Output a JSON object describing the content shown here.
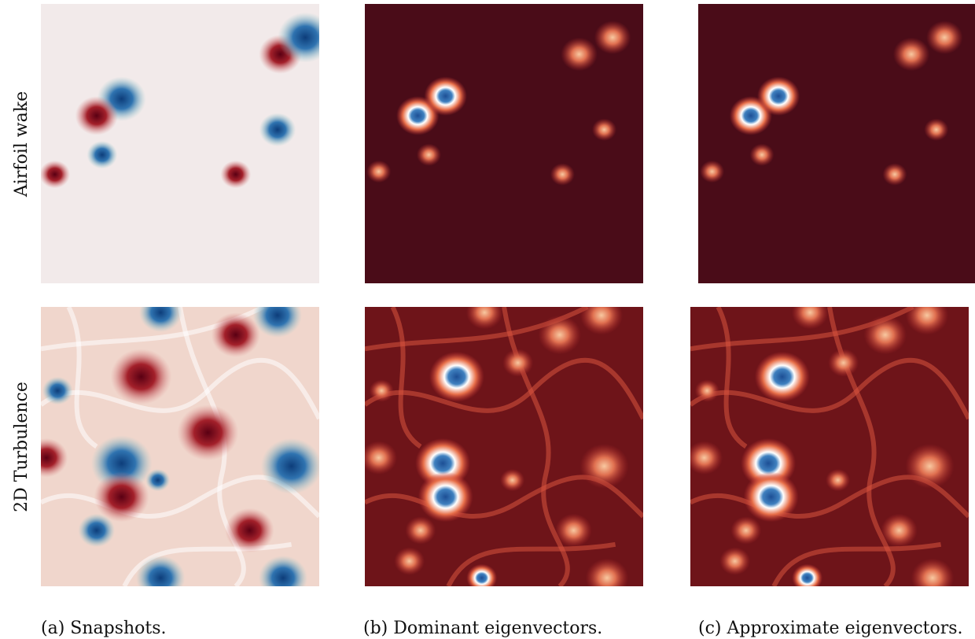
{
  "row_labels": [
    "Airfoil wake",
    "2D Turbulence"
  ],
  "captions": [
    "(a) Snapshots.",
    "(b) Dominant eigenvectors.",
    "(c) Approximate eigenvectors."
  ]
}
